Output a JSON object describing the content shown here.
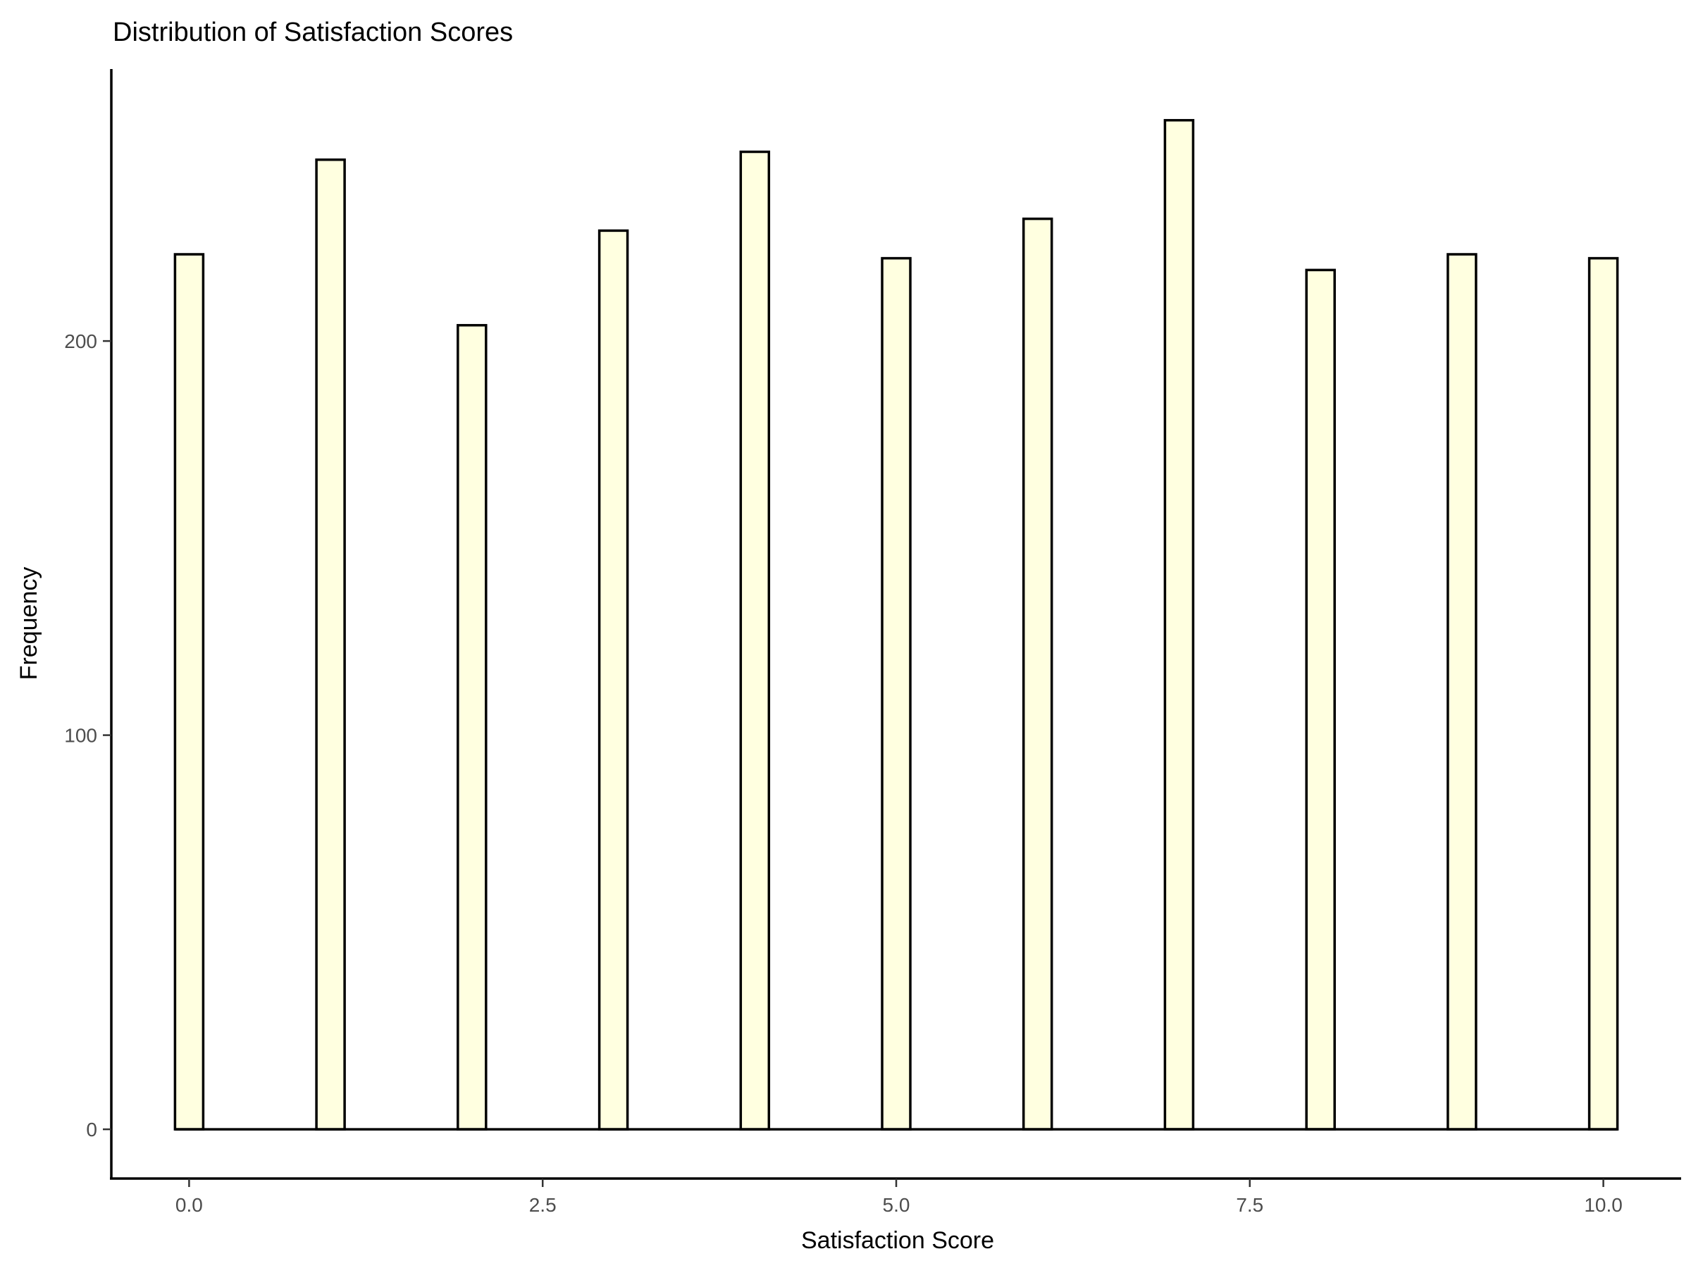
{
  "chart_data": {
    "type": "bar",
    "title": "Distribution of Satisfaction Scores",
    "xlabel": "Satisfaction Score",
    "ylabel": "Frequency",
    "x": [
      0,
      1,
      2,
      3,
      4,
      5,
      6,
      7,
      8,
      9,
      10
    ],
    "values": [
      222,
      246,
      204,
      228,
      248,
      221,
      231,
      256,
      218,
      222,
      221
    ],
    "xlim": [
      -0.55,
      10.55
    ],
    "ylim": [
      -12.5,
      269
    ],
    "xticks": [
      0.0,
      2.5,
      5.0,
      7.5,
      10.0
    ],
    "xtick_labels": [
      "0.0",
      "2.5",
      "5.0",
      "7.5",
      "10.0"
    ],
    "yticks": [
      0,
      100,
      200
    ],
    "ytick_labels": [
      "0",
      "100",
      "200"
    ],
    "bar_fill": "#ffffe0",
    "bar_outline": "#000000",
    "grid": false,
    "legend": "none"
  }
}
